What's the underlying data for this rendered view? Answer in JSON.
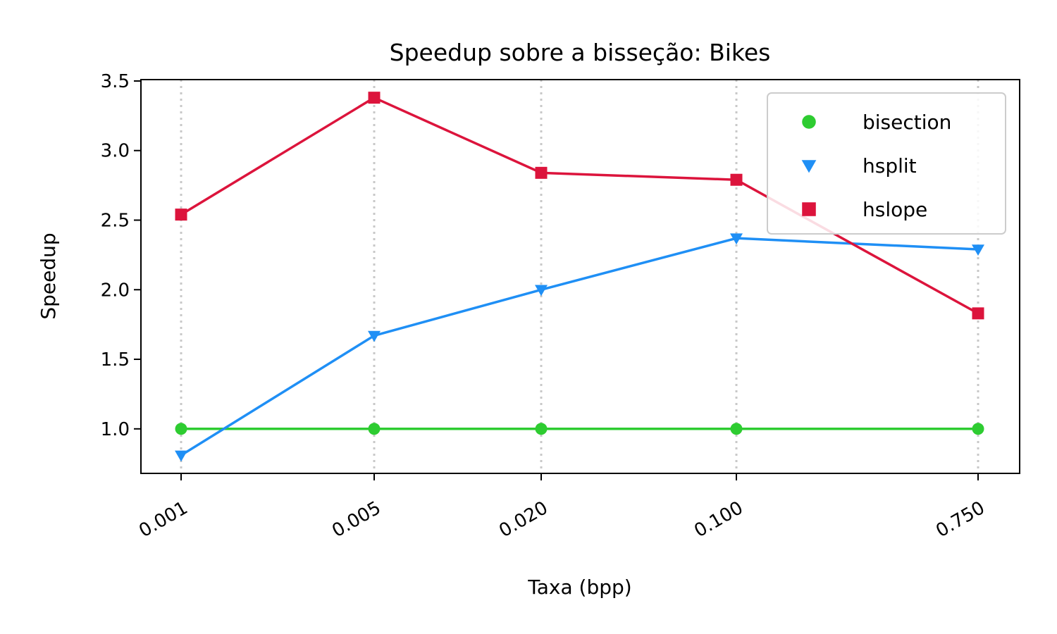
{
  "chart_data": {
    "type": "line",
    "title": "Speedup sobre a bisseção: Bikes",
    "xlabel": "Taxa (bpp)",
    "ylabel": "Speedup",
    "x_scale": "log",
    "x": [
      0.001,
      0.005,
      0.02,
      0.1,
      0.75
    ],
    "x_tick_labels": [
      "0.001",
      "0.005",
      "0.020",
      "0.100",
      "0.750"
    ],
    "y_ticks": [
      1.0,
      1.5,
      2.0,
      2.5,
      3.0,
      3.5
    ],
    "y_tick_labels": [
      "1.0",
      "1.5",
      "2.0",
      "2.5",
      "3.0",
      "3.5"
    ],
    "ylim": [
      0.68,
      3.51
    ],
    "grid": "vertical dotted",
    "legend_position": "top-right",
    "series": [
      {
        "name": "bisection",
        "color": "#2ecc31",
        "marker": "circle",
        "values": [
          1.0,
          1.0,
          1.0,
          1.0,
          1.0
        ]
      },
      {
        "name": "hsplit",
        "color": "#1f8ff5",
        "marker": "triangle-down",
        "values": [
          0.81,
          1.67,
          2.0,
          2.37,
          2.29
        ]
      },
      {
        "name": "hslope",
        "color": "#dc143c",
        "marker": "square",
        "values": [
          2.54,
          3.38,
          2.84,
          2.79,
          1.83
        ]
      }
    ]
  }
}
